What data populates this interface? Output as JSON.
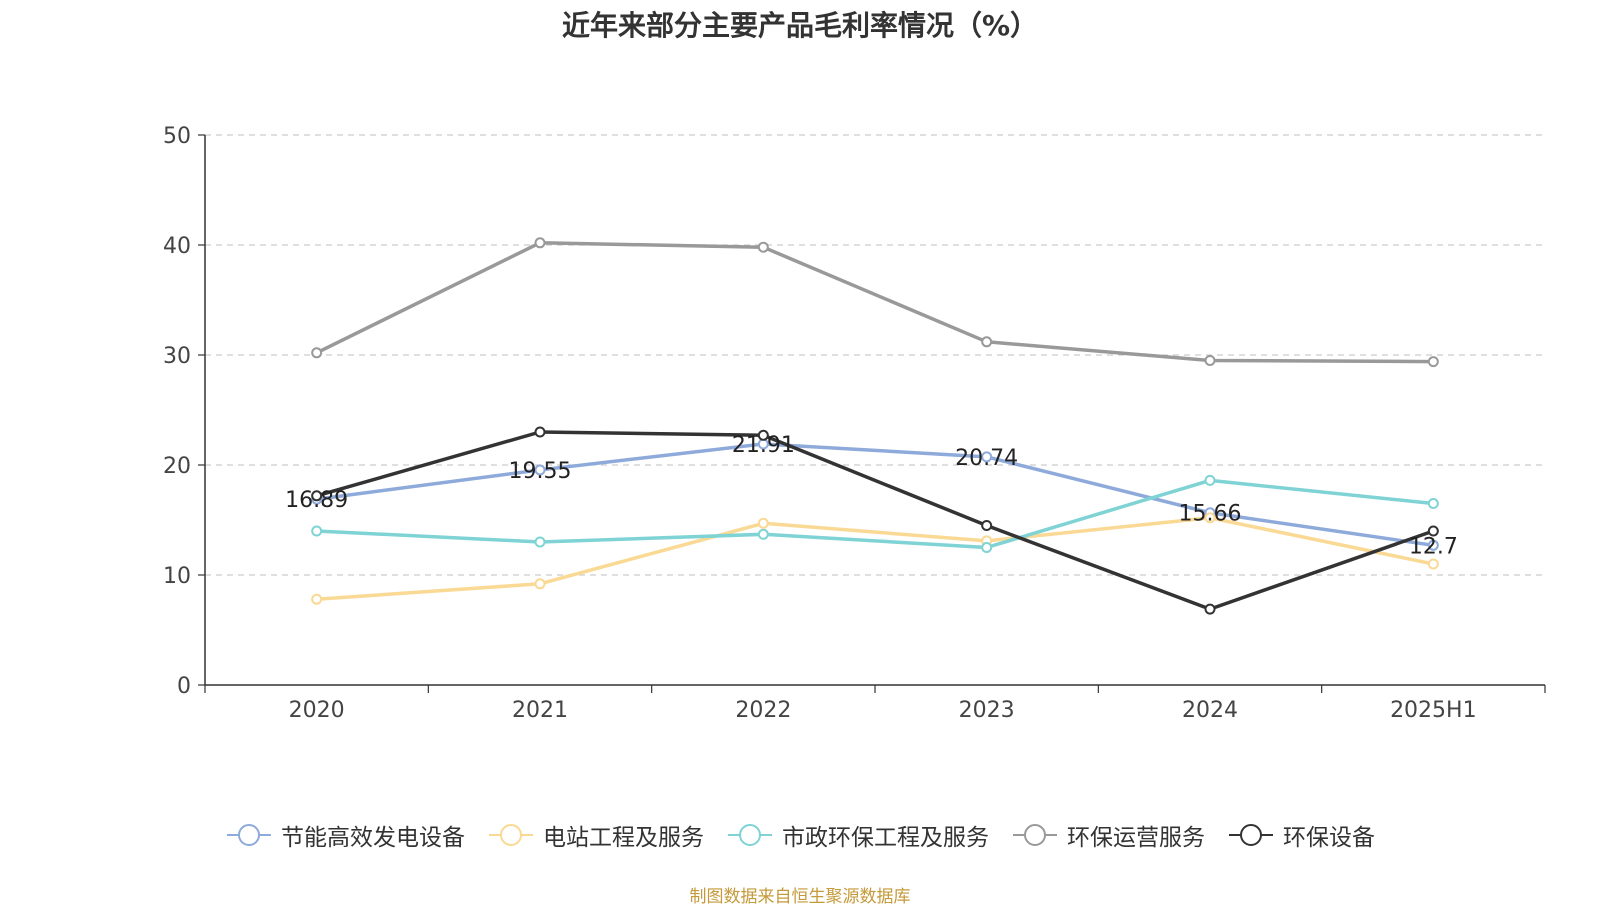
{
  "chart_data": {
    "type": "line",
    "title": "近年来部分主要产品毛利率情况（%）",
    "categories": [
      "2020",
      "2021",
      "2022",
      "2023",
      "2024",
      "2025H1"
    ],
    "ylim": [
      0,
      50
    ],
    "yticks": [
      0,
      10,
      20,
      30,
      40,
      50
    ],
    "grid": true,
    "legend_position": "bottom",
    "series": [
      {
        "name": "节能高效发电设备",
        "color": "#8eaadb",
        "values": [
          16.89,
          19.55,
          21.91,
          20.74,
          15.66,
          12.7
        ],
        "labels": [
          "16.89",
          "19.55",
          "21.91",
          "20.74",
          "15.66",
          "12.7"
        ]
      },
      {
        "name": "电站工程及服务",
        "color": "#fad994",
        "values": [
          7.8,
          9.2,
          14.7,
          13.1,
          15.2,
          11.0
        ]
      },
      {
        "name": "市政环保工程及服务",
        "color": "#7fd3d4",
        "values": [
          14.0,
          13.0,
          13.7,
          12.5,
          18.6,
          16.5
        ]
      },
      {
        "name": "环保运营服务",
        "color": "#999999",
        "values": [
          30.2,
          40.2,
          39.8,
          31.2,
          29.5,
          29.4
        ]
      },
      {
        "name": "环保设备",
        "color": "#333333",
        "values": [
          17.2,
          23.0,
          22.7,
          14.5,
          6.9,
          14.0
        ]
      }
    ]
  },
  "source": "制图数据来自恒生聚源数据库"
}
